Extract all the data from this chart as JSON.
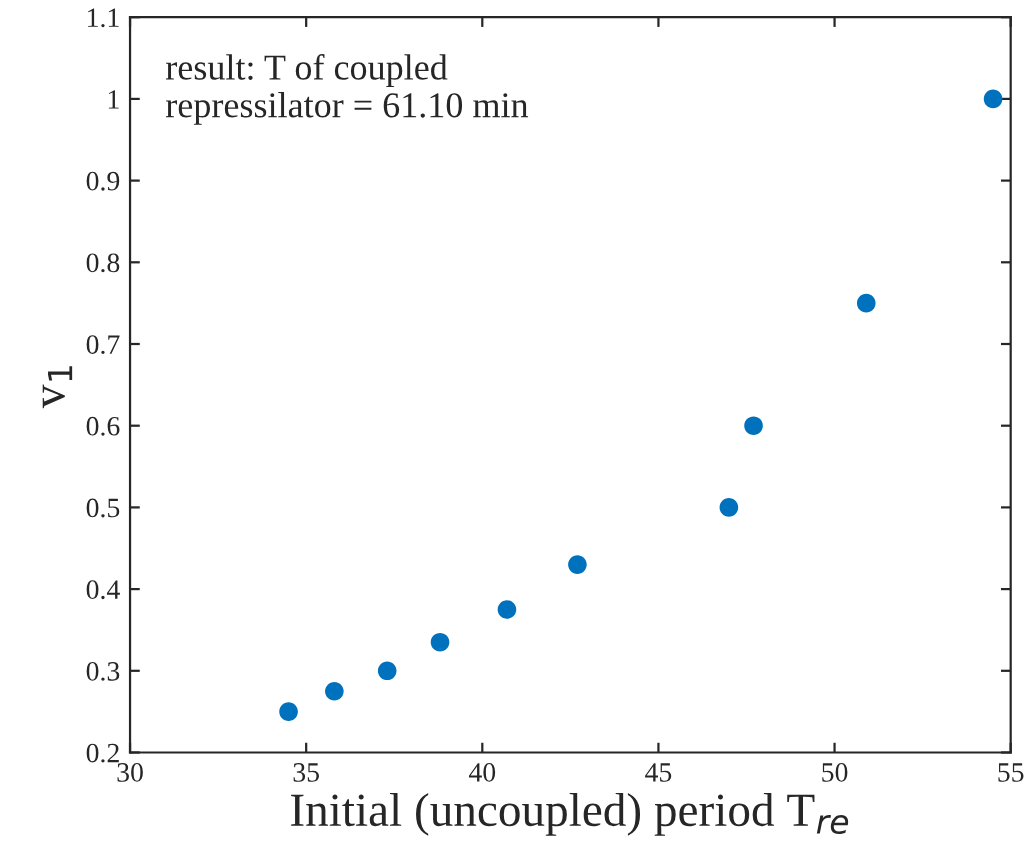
{
  "chart_data": {
    "type": "scatter",
    "xlabel": "Initial (uncoupled) period T$_{re}$",
    "ylabel": "v$_{1}$",
    "annotations": [
      "result: T of coupled\nrepressilator = 61.10 min"
    ],
    "x": [
      34.5,
      35.8,
      37.3,
      38.8,
      40.7,
      42.7,
      47.0,
      47.7,
      50.9,
      54.5
    ],
    "series": [
      {
        "color": "#0072bd",
        "values": [
          0.25,
          0.275,
          0.3,
          0.335,
          0.375,
          0.43,
          0.5,
          0.6,
          0.75,
          1.0
        ]
      }
    ],
    "xlim": [
      30,
      55
    ],
    "xticks": [
      30,
      35,
      40,
      45,
      50,
      55
    ],
    "ylim": [
      0.2,
      1.1
    ],
    "yticks": [
      0.2,
      0.3,
      0.4,
      0.5,
      0.6,
      0.7,
      0.8,
      0.9,
      1,
      1.1
    ],
    "grid": false,
    "marker": "circle"
  }
}
